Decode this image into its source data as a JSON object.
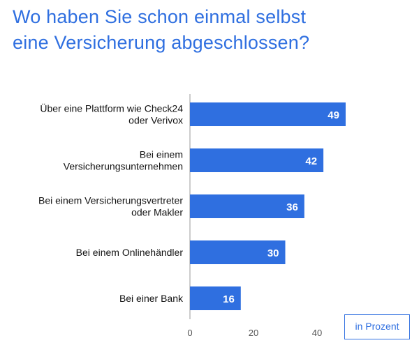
{
  "title": {
    "line1": "Wo haben Sie schon einmal selbst",
    "line2": "eine Versicherung abgeschlossen?"
  },
  "unit_label": "in Prozent",
  "colors": {
    "bar": "#2f6fe0",
    "title": "#2f6fe0",
    "text": "#111111",
    "axis": "#999999"
  },
  "chart_data": {
    "type": "bar",
    "orientation": "horizontal",
    "categories": [
      [
        "Über eine Plattform wie Check24",
        "oder Verivox"
      ],
      [
        "Bei einem",
        "Versicherungsunternehmen"
      ],
      [
        "Bei einem Versicherungsvertreter",
        "oder Makler"
      ],
      [
        "Bei einem Onlinehändler"
      ],
      [
        "Bei einer Bank"
      ]
    ],
    "values": [
      49,
      42,
      36,
      30,
      16
    ],
    "xlim": [
      0,
      50
    ],
    "xticks": [
      0,
      20,
      40
    ],
    "xlabel": "",
    "ylabel": "",
    "grid": false,
    "legend": false
  }
}
